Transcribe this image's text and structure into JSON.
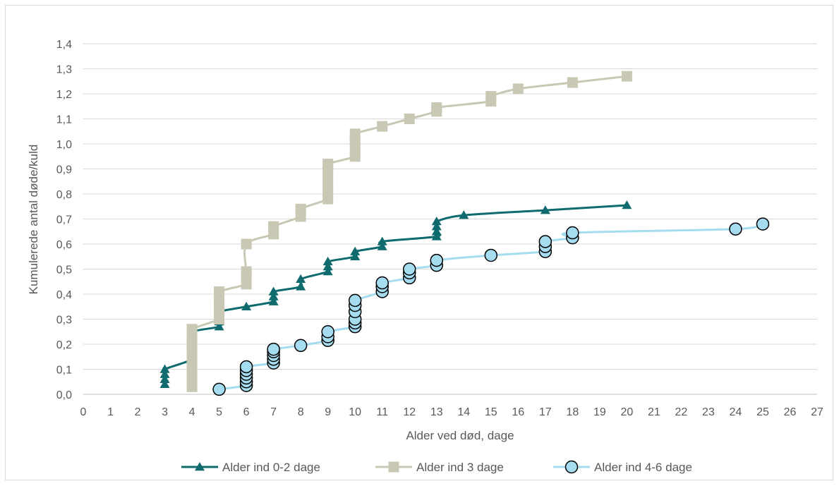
{
  "chart_data": {
    "type": "line",
    "title": "",
    "xlabel": "Alder ved død, dage",
    "ylabel": "Kumulerede antal døde/kuld",
    "xlim": [
      0,
      27
    ],
    "ylim": [
      0,
      1.4
    ],
    "x_ticks": [
      "0",
      "1",
      "2",
      "3",
      "4",
      "5",
      "6",
      "7",
      "8",
      "9",
      "10",
      "11",
      "12",
      "13",
      "14",
      "15",
      "16",
      "17",
      "18",
      "19",
      "20",
      "21",
      "22",
      "23",
      "24",
      "25",
      "26",
      "27"
    ],
    "y_ticks": [
      "0,0",
      "0,1",
      "0,2",
      "0,3",
      "0,4",
      "0,5",
      "0,6",
      "0,7",
      "0,8",
      "0,9",
      "1,0",
      "1,1",
      "1,2",
      "1,3",
      "1,4"
    ],
    "grid": "horizontal",
    "legend_position": "bottom",
    "series": [
      {
        "name": "Alder ind 0-2 dage",
        "color": "#0f6b6e",
        "marker": "triangle",
        "points": [
          [
            3,
            0.04
          ],
          [
            3,
            0.06
          ],
          [
            3,
            0.08
          ],
          [
            3,
            0.1
          ],
          [
            4,
            0.14
          ],
          [
            4,
            0.18
          ],
          [
            4,
            0.22
          ],
          [
            4,
            0.25
          ],
          [
            5,
            0.27
          ],
          [
            5,
            0.29
          ],
          [
            5,
            0.31
          ],
          [
            5,
            0.33
          ],
          [
            6,
            0.35
          ],
          [
            7,
            0.37
          ],
          [
            7,
            0.39
          ],
          [
            7,
            0.41
          ],
          [
            8,
            0.43
          ],
          [
            8,
            0.46
          ],
          [
            9,
            0.49
          ],
          [
            9,
            0.51
          ],
          [
            9,
            0.53
          ],
          [
            10,
            0.55
          ],
          [
            10,
            0.57
          ],
          [
            11,
            0.59
          ],
          [
            11,
            0.61
          ],
          [
            13,
            0.63
          ],
          [
            13,
            0.65
          ],
          [
            13,
            0.67
          ],
          [
            13,
            0.69
          ],
          [
            14,
            0.715
          ],
          [
            17,
            0.735
          ],
          [
            20,
            0.755
          ]
        ]
      },
      {
        "name": "Alder ind 3 dage",
        "color": "#c9c8b4",
        "marker": "square",
        "points": [
          [
            4,
            0.03
          ],
          [
            4,
            0.06
          ],
          [
            4,
            0.1
          ],
          [
            4,
            0.13
          ],
          [
            4,
            0.17
          ],
          [
            4,
            0.2
          ],
          [
            4,
            0.23
          ],
          [
            4,
            0.26
          ],
          [
            5,
            0.3
          ],
          [
            5,
            0.33
          ],
          [
            5,
            0.36
          ],
          [
            5,
            0.38
          ],
          [
            5,
            0.41
          ],
          [
            6,
            0.44
          ],
          [
            6,
            0.47
          ],
          [
            6,
            0.49
          ],
          [
            6,
            0.6
          ],
          [
            7,
            0.64
          ],
          [
            7,
            0.67
          ],
          [
            8,
            0.71
          ],
          [
            8,
            0.74
          ],
          [
            9,
            0.78
          ],
          [
            9,
            0.81
          ],
          [
            9,
            0.84
          ],
          [
            9,
            0.87
          ],
          [
            9,
            0.9
          ],
          [
            9,
            0.92
          ],
          [
            10,
            0.95
          ],
          [
            10,
            0.98
          ],
          [
            10,
            1.01
          ],
          [
            10,
            1.04
          ],
          [
            11,
            1.07
          ],
          [
            12,
            1.1
          ],
          [
            13,
            1.13
          ],
          [
            13,
            1.145
          ],
          [
            15,
            1.17
          ],
          [
            15,
            1.19
          ],
          [
            16,
            1.22
          ],
          [
            18,
            1.245
          ],
          [
            20,
            1.27
          ]
        ]
      },
      {
        "name": "Alder ind 4-6 dage",
        "color": "#a6dcf0",
        "marker": "circle",
        "points": [
          [
            5,
            0.02
          ],
          [
            6,
            0.035
          ],
          [
            6,
            0.05
          ],
          [
            6,
            0.065
          ],
          [
            6,
            0.08
          ],
          [
            6,
            0.095
          ],
          [
            6,
            0.11
          ],
          [
            7,
            0.125
          ],
          [
            7,
            0.14
          ],
          [
            7,
            0.155
          ],
          [
            7,
            0.17
          ],
          [
            7,
            0.18
          ],
          [
            8,
            0.195
          ],
          [
            9,
            0.215
          ],
          [
            9,
            0.23
          ],
          [
            9,
            0.25
          ],
          [
            10,
            0.27
          ],
          [
            10,
            0.285
          ],
          [
            10,
            0.3
          ],
          [
            10,
            0.33
          ],
          [
            10,
            0.355
          ],
          [
            10,
            0.375
          ],
          [
            11,
            0.41
          ],
          [
            11,
            0.43
          ],
          [
            11,
            0.445
          ],
          [
            12,
            0.465
          ],
          [
            12,
            0.485
          ],
          [
            12,
            0.5
          ],
          [
            13,
            0.515
          ],
          [
            13,
            0.535
          ],
          [
            15,
            0.555
          ],
          [
            17,
            0.57
          ],
          [
            17,
            0.59
          ],
          [
            17,
            0.61
          ],
          [
            18,
            0.625
          ],
          [
            18,
            0.645
          ],
          [
            24,
            0.66
          ],
          [
            25,
            0.68
          ]
        ]
      }
    ]
  }
}
